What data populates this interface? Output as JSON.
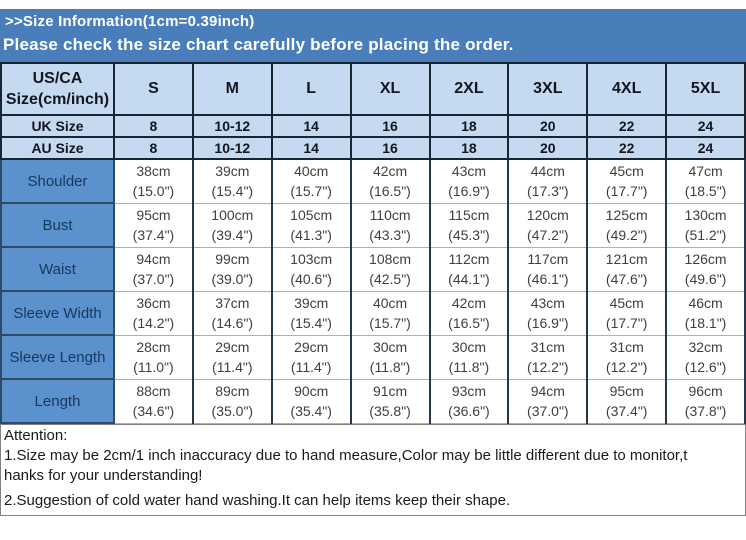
{
  "banner": {
    "line1": ">>Size Information(1cm=0.39inch)",
    "line2": "Please check the size chart carefully before placing the order."
  },
  "colors": {
    "banner_bg": "#4a7ebb",
    "banner_text": "#ffffff",
    "header_bg": "#c5d9f1",
    "label_bg": "#5b92ce",
    "label_text": "#17375d",
    "value_text": "#3f3f3f"
  },
  "table": {
    "corner": {
      "line1": "US/CA",
      "line2": "Size(cm/inch)"
    },
    "size_columns": [
      "S",
      "M",
      "L",
      "XL",
      "2XL",
      "3XL",
      "4XL",
      "5XL"
    ],
    "size_rows": [
      {
        "label": "UK Size",
        "values": [
          "8",
          "10-12",
          "14",
          "16",
          "18",
          "20",
          "22",
          "24"
        ]
      },
      {
        "label": "AU  Size",
        "values": [
          "8",
          "10-12",
          "14",
          "16",
          "18",
          "20",
          "22",
          "24"
        ]
      }
    ],
    "measure_rows": [
      {
        "label": "Shoulder",
        "cells": [
          {
            "cm": "38cm",
            "in": "(15.0\")"
          },
          {
            "cm": "39cm",
            "in": "(15.4\")"
          },
          {
            "cm": "40cm",
            "in": "(15.7\")"
          },
          {
            "cm": "42cm",
            "in": "(16.5\")"
          },
          {
            "cm": "43cm",
            "in": "(16.9\")"
          },
          {
            "cm": "44cm",
            "in": "(17.3\")"
          },
          {
            "cm": "45cm",
            "in": "(17.7\")"
          },
          {
            "cm": "47cm",
            "in": "(18.5\")"
          }
        ]
      },
      {
        "label": "Bust",
        "cells": [
          {
            "cm": "95cm",
            "in": "(37.4\")"
          },
          {
            "cm": "100cm",
            "in": "(39.4\")"
          },
          {
            "cm": "105cm",
            "in": "(41.3\")"
          },
          {
            "cm": "110cm",
            "in": "(43.3\")"
          },
          {
            "cm": "115cm",
            "in": "(45.3\")"
          },
          {
            "cm": "120cm",
            "in": "(47.2\")"
          },
          {
            "cm": "125cm",
            "in": "(49.2\")"
          },
          {
            "cm": "130cm",
            "in": "(51.2\")"
          }
        ]
      },
      {
        "label": "Waist",
        "cells": [
          {
            "cm": "94cm",
            "in": "(37.0\")"
          },
          {
            "cm": "99cm",
            "in": "(39.0\")"
          },
          {
            "cm": "103cm",
            "in": "(40.6\")"
          },
          {
            "cm": "108cm",
            "in": "(42.5\")"
          },
          {
            "cm": "112cm",
            "in": "(44.1\")"
          },
          {
            "cm": "117cm",
            "in": "(46.1\")"
          },
          {
            "cm": "121cm",
            "in": "(47.6\")"
          },
          {
            "cm": "126cm",
            "in": "(49.6\")"
          }
        ]
      },
      {
        "label": "Sleeve Width",
        "cells": [
          {
            "cm": "36cm",
            "in": "(14.2\")"
          },
          {
            "cm": "37cm",
            "in": "(14.6\")"
          },
          {
            "cm": "39cm",
            "in": "(15.4\")"
          },
          {
            "cm": "40cm",
            "in": "(15.7\")"
          },
          {
            "cm": "42cm",
            "in": "(16.5\")"
          },
          {
            "cm": "43cm",
            "in": "(16.9\")"
          },
          {
            "cm": "45cm",
            "in": "(17.7\")"
          },
          {
            "cm": "46cm",
            "in": "(18.1\")"
          }
        ]
      },
      {
        "label": "Sleeve Length",
        "cells": [
          {
            "cm": "28cm",
            "in": "(11.0\")"
          },
          {
            "cm": "29cm",
            "in": "(11.4\")"
          },
          {
            "cm": "29cm",
            "in": "(11.4\")"
          },
          {
            "cm": "30cm",
            "in": "(11.8\")"
          },
          {
            "cm": "30cm",
            "in": "(11.8\")"
          },
          {
            "cm": "31cm",
            "in": "(12.2\")"
          },
          {
            "cm": "31cm",
            "in": "(12.2\")"
          },
          {
            "cm": "32cm",
            "in": "(12.6\")"
          }
        ]
      },
      {
        "label": "Length",
        "cells": [
          {
            "cm": "88cm",
            "in": "(34.6\")"
          },
          {
            "cm": "89cm",
            "in": "(35.0\")"
          },
          {
            "cm": "90cm",
            "in": "(35.4\")"
          },
          {
            "cm": "91cm",
            "in": "(35.8\")"
          },
          {
            "cm": "93cm",
            "in": "(36.6\")"
          },
          {
            "cm": "94cm",
            "in": "(37.0\")"
          },
          {
            "cm": "95cm",
            "in": "(37.4\")"
          },
          {
            "cm": "96cm",
            "in": "(37.8\")"
          }
        ]
      }
    ]
  },
  "attention": {
    "title": "Attention:",
    "lines": [
      "1.Size may be 2cm/1 inch inaccuracy due to hand measure,Color may be little different due to monitor,t",
      "hanks for your understanding!",
      "2.Suggestion of cold water hand washing.It can help items keep their shape."
    ]
  }
}
